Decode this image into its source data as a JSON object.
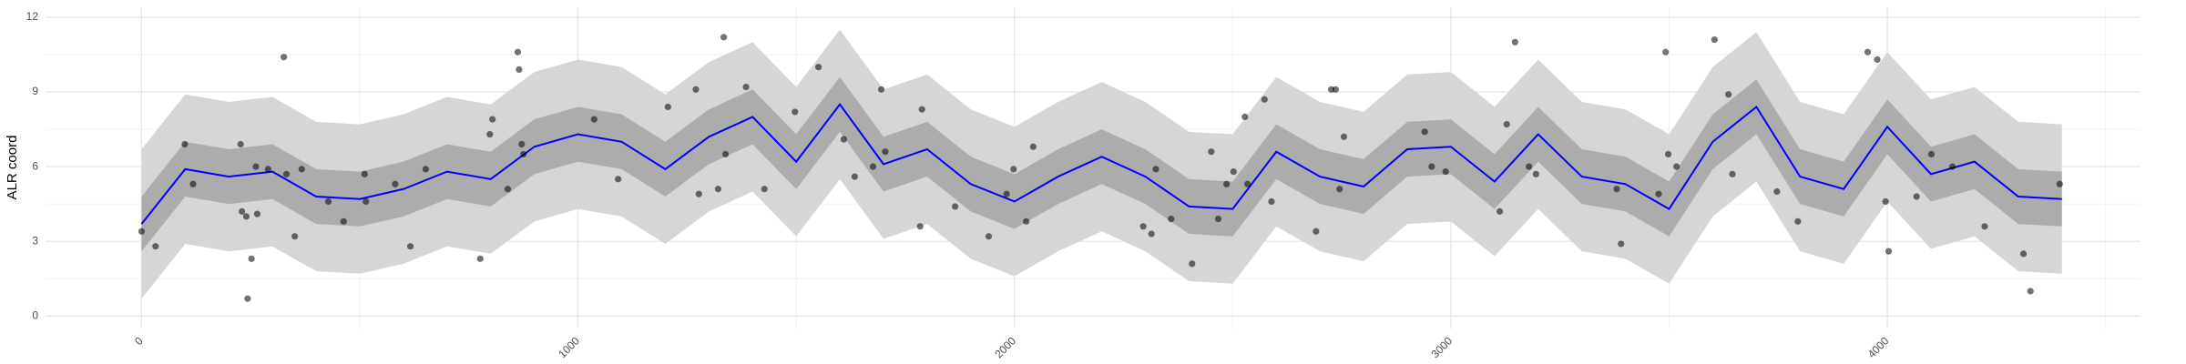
{
  "chart_data": {
    "type": "line",
    "y_label": "ALR coord",
    "x": [
      0,
      100,
      200,
      300,
      400,
      500,
      600,
      700,
      800,
      900,
      1000,
      1100,
      1200,
      1300,
      1400,
      1500,
      1600,
      1700,
      1800,
      1900,
      2000,
      2100,
      2200,
      2300,
      2400,
      2500,
      2600,
      2700,
      2800,
      2900,
      3000,
      3100,
      3200,
      3300,
      3400,
      3500,
      3600,
      3700,
      3800,
      3900,
      4000,
      4100,
      4200,
      4300,
      4400
    ],
    "series": [
      {
        "color": "#0000ff",
        "values": [
          3.7,
          5.9,
          5.6,
          5.8,
          4.8,
          4.7,
          5.1,
          5.8,
          5.5,
          6.8,
          7.3,
          7.0,
          5.9,
          7.2,
          8.0,
          6.2,
          8.5,
          6.1,
          6.7,
          5.3,
          4.6,
          5.6,
          6.4,
          5.6,
          4.4,
          4.3,
          6.6,
          5.6,
          5.2,
          6.7,
          6.8,
          5.4,
          7.3,
          5.6,
          5.3,
          4.3,
          7.0,
          8.4,
          5.6,
          5.1,
          7.6,
          5.7,
          6.2,
          4.8,
          4.7
        ]
      }
    ],
    "bands": [
      {
        "color": "#d6d6d6",
        "lower": [
          0.7,
          2.9,
          2.6,
          2.8,
          1.8,
          1.7,
          2.1,
          2.8,
          2.5,
          3.8,
          4.3,
          4.0,
          2.9,
          4.2,
          5.0,
          3.2,
          5.5,
          3.1,
          3.7,
          2.3,
          1.6,
          2.6,
          3.4,
          2.6,
          1.4,
          1.3,
          3.6,
          2.6,
          2.2,
          3.7,
          3.8,
          2.4,
          4.3,
          2.6,
          2.3,
          1.3,
          4.0,
          5.4,
          2.6,
          2.1,
          4.6,
          2.7,
          3.2,
          1.8,
          1.7
        ],
        "upper": [
          6.7,
          8.9,
          8.6,
          8.8,
          7.8,
          7.7,
          8.1,
          8.8,
          8.5,
          9.8,
          10.3,
          10.0,
          8.9,
          10.2,
          11.0,
          9.2,
          11.5,
          9.1,
          9.7,
          8.3,
          7.6,
          8.6,
          9.4,
          8.6,
          7.4,
          7.3,
          9.6,
          8.6,
          8.2,
          9.7,
          9.8,
          8.4,
          10.3,
          8.6,
          8.3,
          7.3,
          10.0,
          11.4,
          8.6,
          8.1,
          10.6,
          8.7,
          9.2,
          7.8,
          7.7
        ]
      },
      {
        "color": "#acacac",
        "lower": [
          2.6,
          4.8,
          4.5,
          4.7,
          3.7,
          3.6,
          4.0,
          4.7,
          4.4,
          5.7,
          6.2,
          5.9,
          4.8,
          6.1,
          6.9,
          5.1,
          7.4,
          5.0,
          5.6,
          4.2,
          3.5,
          4.5,
          5.3,
          4.5,
          3.3,
          3.2,
          5.5,
          4.5,
          4.1,
          5.6,
          5.7,
          4.3,
          6.2,
          4.5,
          4.2,
          3.2,
          5.9,
          7.3,
          4.5,
          4.0,
          6.5,
          4.6,
          5.1,
          3.7,
          3.6
        ],
        "upper": [
          4.8,
          7.0,
          6.7,
          6.9,
          5.9,
          5.8,
          6.2,
          6.9,
          6.6,
          7.9,
          8.4,
          8.1,
          7.0,
          8.3,
          9.1,
          7.3,
          9.6,
          7.2,
          7.8,
          6.4,
          5.7,
          6.7,
          7.5,
          6.7,
          5.5,
          5.4,
          7.7,
          6.7,
          6.3,
          7.8,
          7.9,
          6.5,
          8.4,
          6.7,
          6.4,
          5.4,
          8.1,
          9.5,
          6.7,
          6.2,
          8.7,
          6.8,
          7.3,
          5.9,
          5.8
        ]
      }
    ],
    "points": {
      "color": "#000000",
      "opacity": 0.55,
      "x": [
        0,
        32,
        99,
        118,
        227,
        230,
        240,
        243,
        252,
        262,
        265,
        290,
        326,
        332,
        351,
        367,
        428,
        463,
        511,
        514,
        581,
        616,
        651,
        776,
        798,
        804,
        839,
        862,
        865,
        871,
        875,
        1037,
        1092,
        1206,
        1270,
        1277,
        1321,
        1334,
        1338,
        1385,
        1427,
        1497,
        1551,
        1609,
        1634,
        1676,
        1695,
        1704,
        1784,
        1788,
        1864,
        1941,
        1982,
        1998,
        2027,
        2043,
        2295,
        2314,
        2324,
        2359,
        2407,
        2451,
        2467,
        2486,
        2502,
        2528,
        2534,
        2573,
        2589,
        2691,
        2726,
        2736,
        2745,
        2755,
        2940,
        2956,
        2988,
        3112,
        3128,
        3147,
        3179,
        3195,
        3380,
        3390,
        3476,
        3492,
        3498,
        3517,
        3604,
        3636,
        3645,
        3747,
        3795,
        3955,
        3977,
        3996,
        4003,
        4067,
        4101,
        4149,
        4223,
        4312,
        4328,
        4395
      ],
      "y": [
        3.4,
        2.8,
        6.9,
        5.3,
        6.9,
        4.2,
        4.0,
        0.7,
        2.3,
        6.0,
        4.1,
        5.9,
        10.4,
        5.7,
        3.2,
        5.9,
        4.6,
        3.8,
        5.7,
        4.6,
        5.3,
        2.8,
        5.9,
        2.3,
        7.3,
        7.9,
        5.1,
        10.6,
        9.9,
        6.9,
        6.5,
        7.9,
        5.5,
        8.4,
        9.1,
        4.9,
        5.1,
        11.2,
        6.5,
        9.2,
        5.1,
        8.2,
        10.0,
        7.1,
        5.6,
        6.0,
        9.1,
        6.6,
        3.6,
        8.3,
        4.4,
        3.2,
        4.9,
        5.9,
        3.8,
        6.8,
        3.6,
        3.3,
        5.9,
        3.9,
        2.1,
        6.6,
        3.9,
        5.3,
        5.8,
        8.0,
        5.3,
        8.7,
        4.6,
        3.4,
        9.1,
        9.1,
        5.1,
        7.2,
        7.4,
        6.0,
        5.8,
        4.2,
        7.7,
        11.0,
        6.0,
        5.7,
        5.1,
        2.9,
        4.9,
        10.6,
        6.5,
        6.0,
        11.1,
        8.9,
        5.7,
        5.0,
        3.8,
        10.6,
        10.3,
        4.6,
        2.6,
        4.8,
        6.5,
        6.0,
        3.6,
        2.5,
        1.0,
        5.3
      ]
    },
    "xlim": [
      -220,
      4580
    ],
    "ylim": [
      -0.5,
      12.4
    ],
    "xticks": [
      0,
      1000,
      2000,
      3000,
      4000
    ],
    "yticks": [
      0,
      3,
      6,
      9,
      12
    ],
    "x_minor_ticks": [
      500,
      1500,
      2500,
      3500,
      4500
    ],
    "y_minor_ticks": [
      1.5,
      4.5,
      7.5,
      10.5
    ],
    "grid": true
  }
}
